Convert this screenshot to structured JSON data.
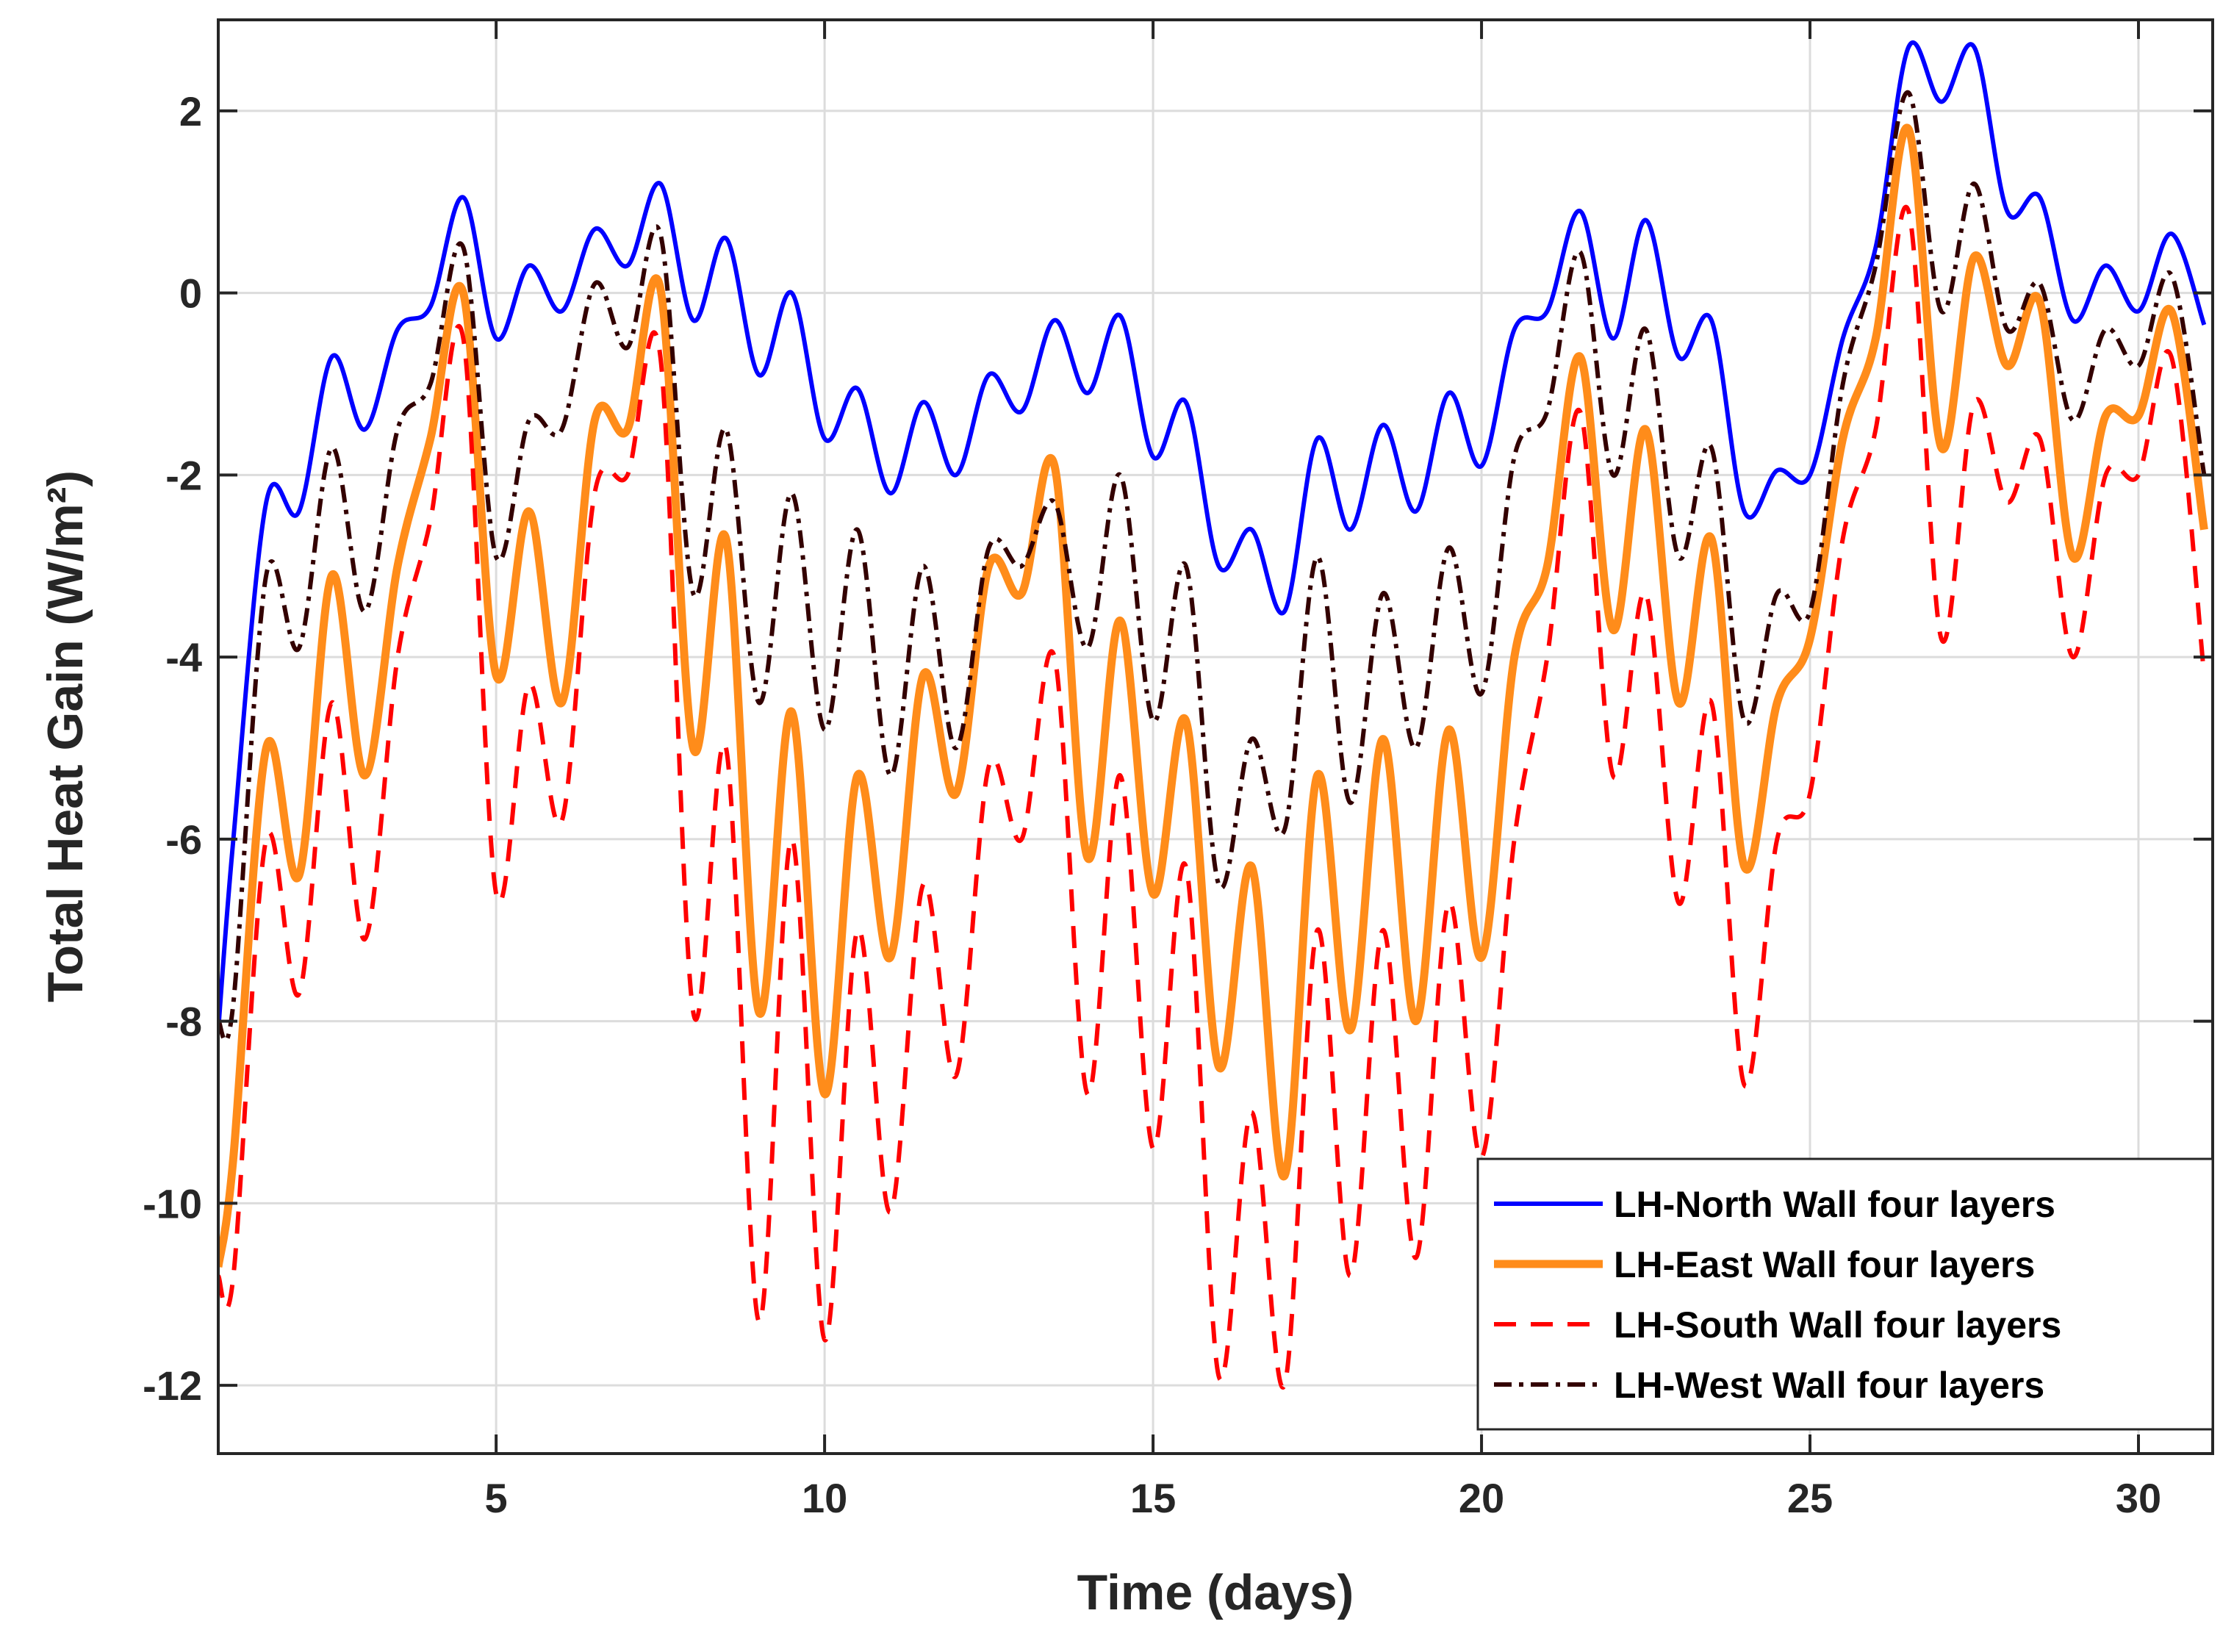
{
  "chart_data": {
    "type": "line",
    "xlabel": "Time (days)",
    "ylabel": "Total Heat Gain (W/m²)",
    "xlim": [
      0.77,
      31.13
    ],
    "ylim": [
      -12.75,
      3
    ],
    "xticks": [
      5,
      10,
      15,
      20,
      25,
      30
    ],
    "yticks": [
      -12,
      -10,
      -8,
      -6,
      -4,
      -2,
      0,
      2
    ],
    "grid": true,
    "legend": "lower right",
    "x": [
      0.77,
      1,
      1.5,
      2,
      2.5,
      3,
      3.5,
      4,
      4.5,
      5,
      5.5,
      6,
      6.5,
      7,
      7.5,
      8,
      8.5,
      9,
      9.5,
      10,
      10.5,
      11,
      11.5,
      12,
      12.5,
      13,
      13.5,
      14,
      14.5,
      15,
      15.5,
      16,
      16.5,
      17,
      17.5,
      18,
      18.5,
      19,
      19.5,
      20,
      20.5,
      21,
      21.5,
      22,
      22.5,
      23,
      23.5,
      24,
      24.5,
      25,
      25.5,
      26,
      26.5,
      27,
      27.5,
      28,
      28.5,
      29,
      29.5,
      30,
      30.5,
      31
    ],
    "series": [
      {
        "name": "LH-North Wall four layers",
        "color": "#0000ff",
        "linestyle": "solid",
        "values": [
          -8.1,
          -6,
          -2.3,
          -2.4,
          -0.7,
          -1.5,
          -0.4,
          -0.15,
          1.05,
          -0.5,
          0.3,
          -0.2,
          0.7,
          0.3,
          1.2,
          -0.3,
          0.6,
          -0.9,
          0.0,
          -1.6,
          -1.05,
          -2.2,
          -1.2,
          -2.0,
          -0.9,
          -1.3,
          -0.3,
          -1.1,
          -0.25,
          -1.8,
          -1.2,
          -3.0,
          -2.6,
          -3.5,
          -1.6,
          -2.6,
          -1.45,
          -2.4,
          -1.1,
          -1.9,
          -0.4,
          -0.2,
          0.9,
          -0.5,
          0.8,
          -0.7,
          -0.3,
          -2.4,
          -1.95,
          -2.0,
          -0.5,
          0.5,
          2.7,
          2.1,
          2.7,
          0.9,
          1.05,
          -0.3,
          0.3,
          -0.2,
          0.65,
          -0.35
        ]
      },
      {
        "name": "LH-East Wall four layers",
        "color": "#ff8c1a",
        "linestyle": "solid",
        "values": [
          -10.7,
          -9.5,
          -5.0,
          -6.4,
          -3.1,
          -5.3,
          -3.0,
          -1.6,
          0.0,
          -4.2,
          -2.4,
          -4.5,
          -1.4,
          -1.5,
          0.05,
          -5.0,
          -2.7,
          -7.9,
          -4.6,
          -8.8,
          -5.3,
          -7.3,
          -4.2,
          -5.5,
          -3.0,
          -3.3,
          -1.9,
          -6.2,
          -3.6,
          -6.6,
          -4.7,
          -8.5,
          -6.3,
          -9.7,
          -5.3,
          -8.1,
          -4.9,
          -8.0,
          -4.8,
          -7.3,
          -4.0,
          -3.0,
          -0.7,
          -3.7,
          -1.5,
          -4.5,
          -2.7,
          -6.3,
          -4.5,
          -3.8,
          -1.6,
          -0.5,
          1.8,
          -1.7,
          0.4,
          -0.8,
          -0.1,
          -2.9,
          -1.35,
          -1.35,
          -0.2,
          -2.6
        ]
      },
      {
        "name": "LH-South Wall four layers",
        "color": "#ff0000",
        "linestyle": "dashed",
        "values": [
          -10.8,
          -10.8,
          -6.0,
          -7.7,
          -4.5,
          -7.1,
          -4.0,
          -2.5,
          -0.5,
          -6.6,
          -4.3,
          -5.8,
          -2.2,
          -2.0,
          -0.7,
          -7.9,
          -5.0,
          -11.3,
          -6.0,
          -11.5,
          -7.0,
          -10.1,
          -6.5,
          -8.6,
          -5.2,
          -6.0,
          -4.0,
          -8.8,
          -5.3,
          -9.4,
          -6.3,
          -11.9,
          -9.0,
          -12.0,
          -7.0,
          -10.8,
          -7.0,
          -10.6,
          -6.7,
          -9.5,
          -6.0,
          -4.0,
          -1.3,
          -5.3,
          -3.3,
          -6.7,
          -4.5,
          -8.7,
          -6.0,
          -5.5,
          -2.7,
          -1.5,
          0.9,
          -3.8,
          -1.2,
          -2.3,
          -1.6,
          -4.0,
          -2.0,
          -2.0,
          -0.7,
          -4.2
        ]
      },
      {
        "name": "LH-West Wall four layers",
        "color": "#330000",
        "linestyle": "dashdot",
        "values": [
          -8.0,
          -7.8,
          -3.1,
          -3.9,
          -1.7,
          -3.5,
          -1.5,
          -1.0,
          0.5,
          -2.9,
          -1.4,
          -1.5,
          0.1,
          -0.6,
          0.65,
          -3.3,
          -1.5,
          -4.5,
          -2.2,
          -4.8,
          -2.6,
          -5.3,
          -3.0,
          -5.0,
          -2.8,
          -3.0,
          -2.3,
          -3.9,
          -2.0,
          -4.7,
          -3.0,
          -6.5,
          -4.9,
          -5.9,
          -2.9,
          -5.6,
          -3.3,
          -5.0,
          -2.8,
          -4.4,
          -1.8,
          -1.3,
          0.45,
          -2.0,
          -0.4,
          -2.9,
          -1.7,
          -4.7,
          -3.3,
          -3.5,
          -1.0,
          0.3,
          2.2,
          -0.2,
          1.2,
          -0.4,
          0.1,
          -1.4,
          -0.4,
          -0.8,
          0.2,
          -2.0
        ]
      }
    ]
  }
}
